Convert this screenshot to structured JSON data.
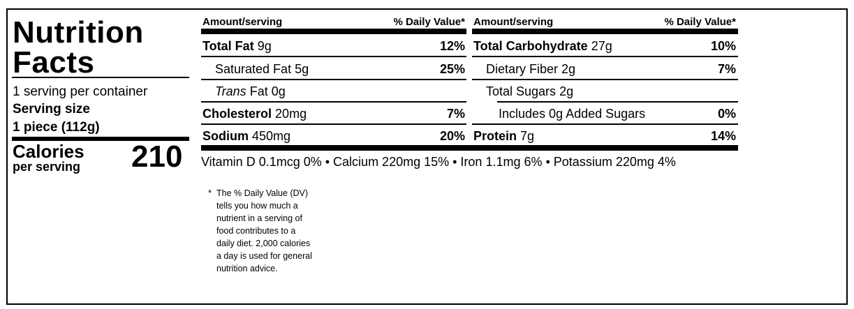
{
  "label": {
    "title_line1": "Nutrition",
    "title_line2": "Facts",
    "servings_per_container": "1 serving per container",
    "serving_size_label": "Serving size",
    "serving_size_value": "1 piece (112g)",
    "calories_label": "Calories",
    "calories_sublabel": "per serving",
    "calories_value": "210"
  },
  "columns": {
    "left_header_amount": "Amount/serving",
    "left_header_dv": "% Daily Value*",
    "right_header_amount": "Amount/serving",
    "right_header_dv": "% Daily Value*"
  },
  "left_rows": [
    {
      "name": "Total Fat",
      "amount": "9g",
      "dv": "12%"
    },
    {
      "name": "Saturated Fat",
      "amount": "5g",
      "dv": "25%"
    },
    {
      "name": "Trans",
      "name_rest": "Fat 0g",
      "dv": ""
    },
    {
      "name": "Cholesterol",
      "amount": "20mg",
      "dv": "7%"
    },
    {
      "name": "Sodium",
      "amount": "450mg",
      "dv": "20%"
    }
  ],
  "right_rows": [
    {
      "name": "Total Carbohydrate",
      "amount": "27g",
      "dv": "10%"
    },
    {
      "name": "Dietary Fiber",
      "amount": "2g",
      "dv": "7%"
    },
    {
      "name": "Total Sugars",
      "amount": "2g",
      "dv": ""
    },
    {
      "name": "Includes 0g Added Sugars",
      "amount": "",
      "dv": "0%"
    },
    {
      "name": "Protein",
      "amount": "7g",
      "dv": "14%"
    }
  ],
  "micronutrients": "Vitamin D 0.1mcg 0% • Calcium 220mg 15% • Iron 1.1mg 6% • Potassium 220mg 4%",
  "footnote": {
    "star": "*",
    "text": "The % Daily Value (DV) tells you how much a nutrient in a serving of food contributes to a daily diet. 2,000 calories a day is used for general nutrition advice."
  }
}
